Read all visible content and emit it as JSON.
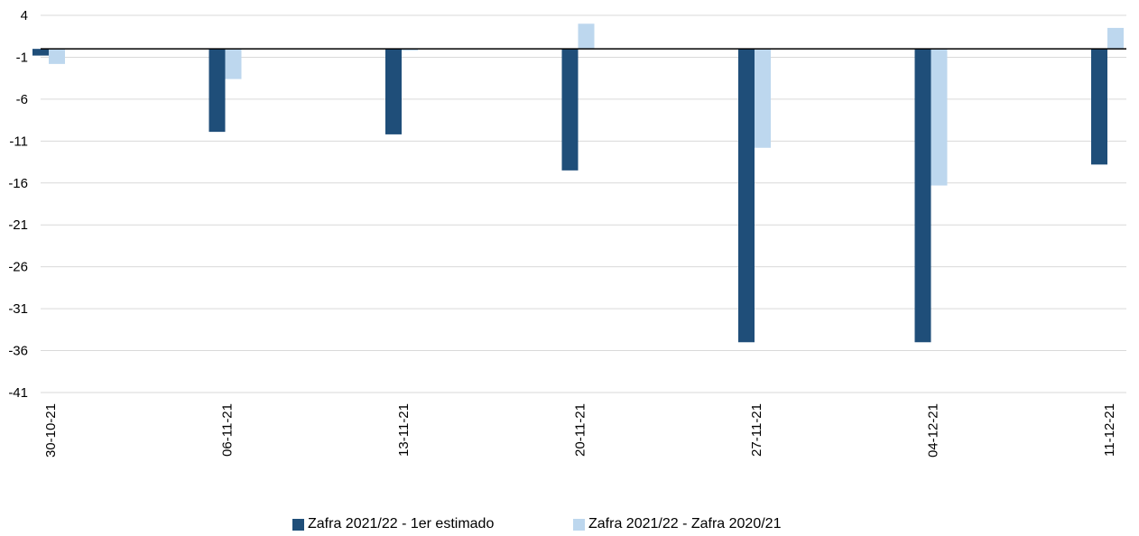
{
  "chart_data": {
    "type": "bar",
    "categories": [
      "30-10-21",
      "06-11-21",
      "13-11-21",
      "20-11-21",
      "27-11-21",
      "04-12-21",
      "11-12-21"
    ],
    "series": [
      {
        "name": "Zafra 2021/22 - 1er estimado",
        "values": [
          -0.8,
          -9.9,
          -10.2,
          -14.5,
          -35.0,
          -35.0,
          -13.8
        ],
        "color": "#1f4e79"
      },
      {
        "name": "Zafra 2021/22 - Zafra 2020/21",
        "values": [
          -1.8,
          -3.6,
          -0.2,
          3.0,
          -11.8,
          -16.3,
          2.5
        ],
        "color": "#bdd7ee"
      }
    ],
    "ylim": [
      -41,
      4
    ],
    "yticks": [
      4,
      -1,
      -6,
      -11,
      -16,
      -21,
      -26,
      -31,
      -36,
      -41
    ],
    "grid": true,
    "legend_position": "bottom"
  }
}
